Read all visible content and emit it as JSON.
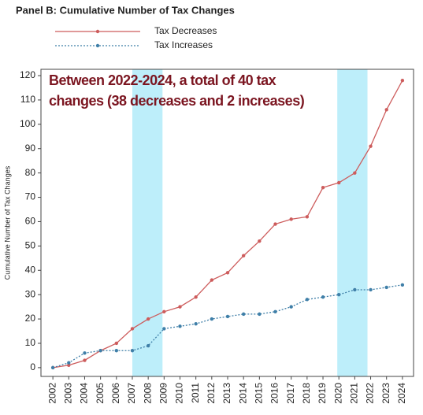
{
  "chart_data": {
    "type": "line",
    "title": "Panel B: Cumulative Number of Tax Changes",
    "ylabel": "Cumulative Number of Tax Changes",
    "annotation": [
      "Between 2022-2024, a total of 40 tax",
      "changes (38 decreases and 2 increases)"
    ],
    "x": [
      2002,
      2003,
      2004,
      2005,
      2006,
      2007,
      2008,
      2009,
      2010,
      2011,
      2012,
      2013,
      2014,
      2015,
      2016,
      2017,
      2018,
      2019,
      2020,
      2021,
      2022,
      2023,
      2024
    ],
    "series": [
      {
        "name": "Tax Decreases",
        "color": "#cd5c5c",
        "dash": false,
        "values": [
          0,
          1,
          3,
          7,
          10,
          16,
          20,
          23,
          25,
          29,
          36,
          39,
          46,
          52,
          59,
          61,
          62,
          74,
          76,
          80,
          91,
          106,
          118
        ]
      },
      {
        "name": "Tax Increases",
        "color": "#3f7fa8",
        "dash": true,
        "values": [
          0,
          2,
          6,
          7,
          7,
          7,
          9,
          16,
          17,
          18,
          20,
          21,
          22,
          22,
          23,
          25,
          28,
          29,
          30,
          32,
          32,
          33,
          34
        ]
      }
    ],
    "shaded_spans": [
      {
        "start": 2007,
        "end": 2008.9
      },
      {
        "start": 2019.9,
        "end": 2021.8
      }
    ],
    "shade_color": "#bdeefa",
    "xlim": [
      2001.25,
      2024.7
    ],
    "xticks": [
      2002,
      2003,
      2004,
      2005,
      2006,
      2007,
      2008,
      2009,
      2010,
      2011,
      2012,
      2013,
      2014,
      2015,
      2016,
      2017,
      2018,
      2019,
      2020,
      2021,
      2022,
      2023,
      2024
    ],
    "ylim": [
      -3.6,
      122.6
    ],
    "yticks": [
      0,
      10,
      20,
      30,
      40,
      50,
      60,
      70,
      80,
      90,
      100,
      110,
      120
    ]
  }
}
